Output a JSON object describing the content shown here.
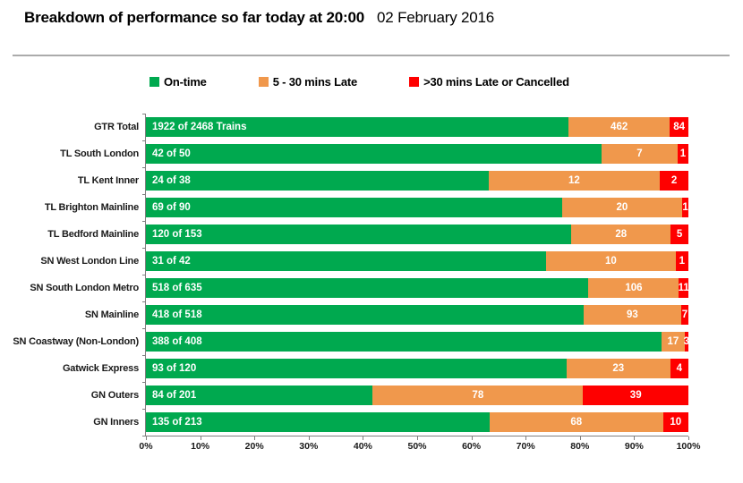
{
  "title": {
    "main": "Breakdown of performance so far today at 20:00",
    "date": "02 February 2016"
  },
  "legend": [
    {
      "name": "on-time",
      "label": "On-time",
      "color": "#00a94f"
    },
    {
      "name": "late",
      "label": "5 - 30 mins Late",
      "color": "#f0984c"
    },
    {
      "name": "cancelled",
      "label": ">30 mins Late or Cancelled",
      "color": "#fe0000"
    }
  ],
  "chart_data": {
    "type": "bar",
    "orientation": "horizontal_stacked_percent",
    "title": "Breakdown of performance so far today at 20:00 02 February 2016",
    "grid": false,
    "legend_position": "top",
    "xlim": [
      0,
      100
    ],
    "x_tick_labels": [
      "0%",
      "10%",
      "20%",
      "30%",
      "40%",
      "50%",
      "60%",
      "70%",
      "80%",
      "90%",
      "100%"
    ],
    "categories": [
      "GTR Total",
      "TL South London",
      "TL Kent Inner",
      "TL Brighton Mainline",
      "TL Bedford Mainline",
      "SN West London Line",
      "SN South London Metro",
      "SN Mainline",
      "SN Coastway (Non-London)",
      "Gatwick Express",
      "GN Outers",
      "GN Inners"
    ],
    "totals": [
      2468,
      50,
      38,
      90,
      153,
      42,
      635,
      518,
      408,
      120,
      201,
      213
    ],
    "series": [
      {
        "name": "On-time",
        "color": "#00a94f",
        "values": [
          1922,
          42,
          24,
          69,
          120,
          31,
          518,
          418,
          388,
          93,
          84,
          135
        ],
        "bar_labels": [
          "1922 of 2468 Trains",
          "42 of 50",
          "24 of 38",
          "69 of 90",
          "120 of 153",
          "31 of 42",
          "518 of 635",
          "418 of 518",
          "388 of 408",
          "93 of 120",
          "84 of 201",
          "135 of 213"
        ]
      },
      {
        "name": "5 - 30 mins Late",
        "color": "#f0984c",
        "values": [
          462,
          7,
          12,
          20,
          28,
          10,
          106,
          93,
          17,
          23,
          78,
          68
        ],
        "bar_labels": [
          "462",
          "7",
          "12",
          "20",
          "28",
          "10",
          "106",
          "93",
          "17",
          "23",
          "78",
          "68"
        ]
      },
      {
        "name": ">30 mins Late or Cancelled",
        "color": "#fe0000",
        "values": [
          84,
          1,
          2,
          1,
          5,
          1,
          11,
          7,
          3,
          4,
          39,
          10
        ],
        "bar_labels": [
          "84",
          "1",
          "2",
          "1",
          "5",
          "1",
          "11",
          "7",
          "3",
          "4",
          "39",
          "10"
        ]
      }
    ]
  }
}
